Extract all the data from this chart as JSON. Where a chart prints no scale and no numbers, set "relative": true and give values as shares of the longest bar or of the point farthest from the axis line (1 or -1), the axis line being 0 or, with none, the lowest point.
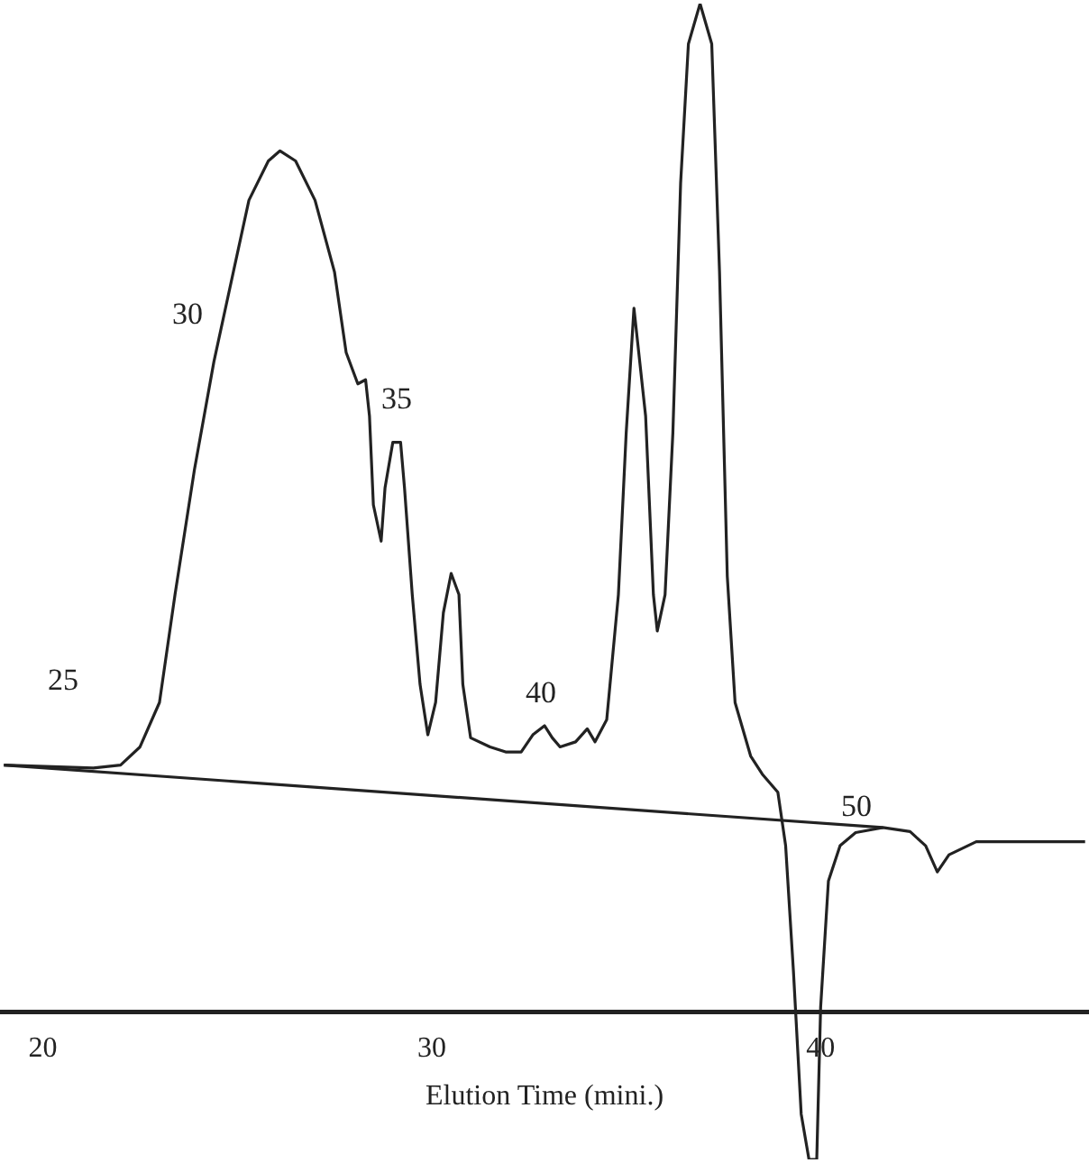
{
  "chart_data": {
    "type": "line",
    "relative": true,
    "xlabel": "Elution Time (mini.)",
    "xlim": [
      18.9,
      46.9
    ],
    "xticks": [
      20,
      30,
      40
    ],
    "grid": false,
    "legend": false,
    "marker": "none",
    "line_style": "solid",
    "series": [
      {
        "color": "#222222",
        "x": [
          19.0,
          21.3,
          22.0,
          22.5,
          23.0,
          23.4,
          23.9,
          24.4,
          24.9,
          25.3,
          25.8,
          26.1,
          26.5,
          27.0,
          27.5,
          27.8,
          28.1,
          28.3,
          28.4,
          28.5,
          28.7,
          28.8,
          29.0,
          29.2,
          29.3,
          29.5,
          29.7,
          29.9,
          30.1,
          30.3,
          30.5,
          30.7,
          30.8,
          31.0,
          31.5,
          31.9,
          32.3,
          32.6,
          32.9,
          33.1,
          33.3,
          33.7,
          34.0,
          34.2,
          34.5,
          34.8,
          35.0,
          35.2,
          35.5,
          35.7,
          35.8,
          36.0,
          36.2,
          36.4,
          36.6,
          36.9,
          37.2,
          37.4,
          37.6,
          37.8,
          38.2,
          38.5,
          38.9,
          39.1,
          39.3,
          39.5,
          39.7,
          39.9,
          40.0,
          40.2,
          40.5,
          40.9,
          41.6,
          42.3,
          42.7,
          43.0,
          43.3,
          44.0,
          45.4,
          46.8
        ],
        "values": [
          0.245,
          0.242,
          0.245,
          0.263,
          0.307,
          0.414,
          0.538,
          0.645,
          0.734,
          0.805,
          0.844,
          0.854,
          0.844,
          0.805,
          0.734,
          0.654,
          0.623,
          0.627,
          0.591,
          0.503,
          0.467,
          0.52,
          0.565,
          0.565,
          0.52,
          0.414,
          0.325,
          0.275,
          0.307,
          0.396,
          0.435,
          0.414,
          0.325,
          0.272,
          0.263,
          0.258,
          0.258,
          0.275,
          0.284,
          0.272,
          0.263,
          0.268,
          0.281,
          0.268,
          0.29,
          0.414,
          0.574,
          0.698,
          0.591,
          0.414,
          0.378,
          0.414,
          0.574,
          0.822,
          0.96,
          1,
          0.96,
          0.734,
          0.432,
          0.307,
          0.254,
          0.236,
          0.218,
          0.165,
          0.041,
          -0.101,
          -0.146,
          -0.146,
          0.005,
          0.13,
          0.165,
          0.178,
          0.183,
          0.179,
          0.165,
          0.139,
          0.156,
          0.169,
          0.169,
          0.169
        ]
      },
      {
        "type": "line",
        "color": "#222222",
        "x": [
          19.0,
          41.6
        ],
        "values": [
          0.245,
          0.183
        ]
      }
    ],
    "annotations": [
      "25",
      "30",
      "35",
      "40",
      "50"
    ]
  }
}
